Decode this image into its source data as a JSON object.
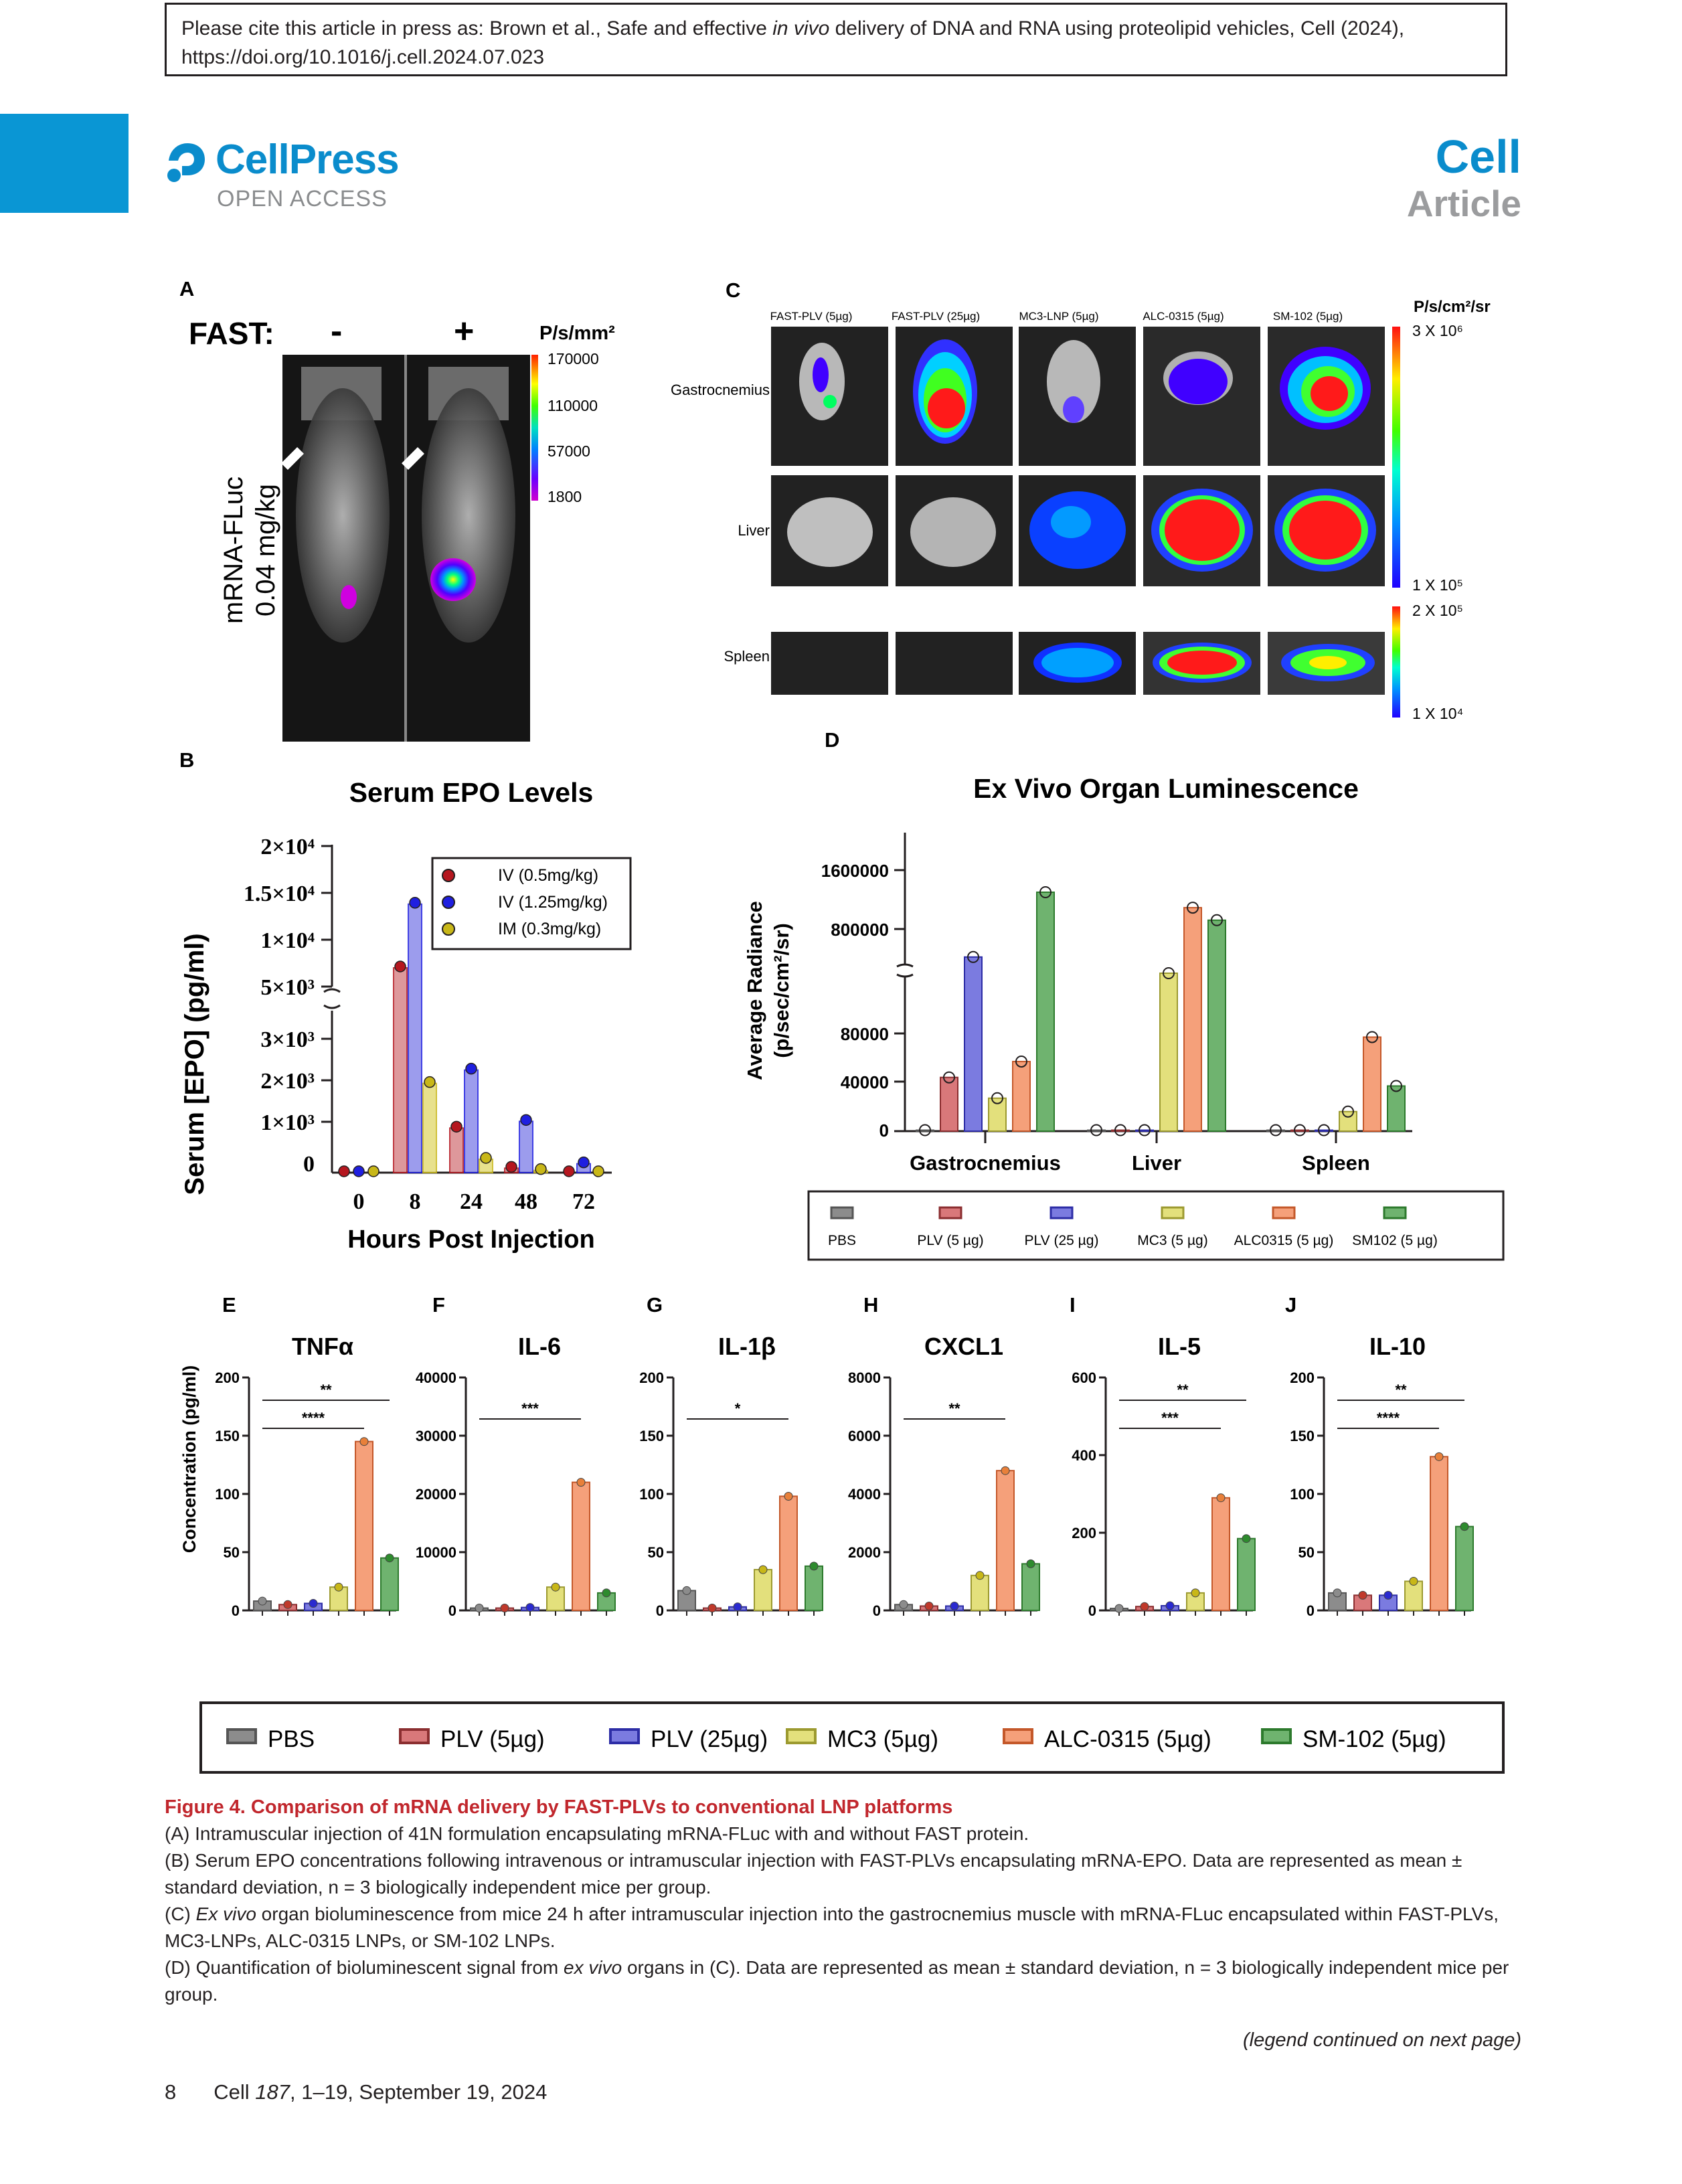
{
  "header": {
    "cite_prefix": "Please cite this article in press as: Brown et al., Safe and effective ",
    "cite_italic": "in vivo",
    "cite_suffix": " delivery of DNA and RNA using proteolipid vehicles, Cell (2024),",
    "cite_doi": "https://doi.org/10.1016/j.cell.2024.07.023",
    "publisher": "CellPress",
    "open_access": "OPEN ACCESS",
    "journal": "Cell",
    "article_type": "Article"
  },
  "panelA": {
    "letter": "A",
    "fast_label": "FAST:",
    "minus": "-",
    "plus": "+",
    "unit": "P/s/mm²",
    "scale": [
      "170000",
      "110000",
      "57000",
      "1800"
    ],
    "ylabel_line1": "mRNA-FLuc",
    "ylabel_line2": "0.04 mg/kg"
  },
  "panelC": {
    "letter": "C",
    "columns": [
      "FAST-PLV (5µg)",
      "FAST-PLV (25µg)",
      "MC3-LNP (5µg)",
      "ALC-0315 (5µg)",
      "SM-102 (5µg)"
    ],
    "rows": [
      "Gastrocnemius",
      "Liver",
      "Spleen"
    ],
    "unit": "P/s/cm²/sr",
    "scale1_top": "3 X 10⁶",
    "scale1_bottom": "1 X 10⁵",
    "scale2_top": "2 X 10⁵",
    "scale2_bottom": "1 X 10⁴"
  },
  "panelB": {
    "letter": "B",
    "title": "Serum EPO Levels",
    "ylabel": "Serum [EPO] (pg/ml)",
    "xlabel": "Hours Post Injection",
    "yticks_upper": [
      "2×10⁴",
      "1.5×10⁴",
      "1×10⁴",
      "5×10³"
    ],
    "yticks_lower": [
      "3×10³",
      "2×10³",
      "1×10³",
      "0"
    ],
    "xticks": [
      "0",
      "8",
      "24",
      "48",
      "72"
    ],
    "legend": [
      "IV (0.5mg/kg)",
      "IV (1.25mg/kg)",
      "IM (0.3mg/kg)"
    ],
    "colors": [
      "#b5171f",
      "#1f1fe0",
      "#c8b718"
    ]
  },
  "panelD": {
    "letter": "D",
    "title": "Ex Vivo Organ Luminescence",
    "ylabel_line1": "Average Radiance",
    "ylabel_line2": "(p/sec/cm²/sr)",
    "yticks_upper": [
      "1600000",
      "800000"
    ],
    "yticks_lower": [
      "80000",
      "40000",
      "0"
    ],
    "groups": [
      "Gastrocnemius",
      "Liver",
      "Spleen"
    ],
    "legend": [
      "PBS",
      "PLV (5 µg)",
      "PLV (25 µg)",
      "MC3 (5 µg)",
      "ALC0315 (5 µg)",
      "SM102 (5 µg)"
    ]
  },
  "cytokines": {
    "ylabel": "Concentration (pg/ml)",
    "panels": [
      {
        "letter": "E",
        "title": "TNFα",
        "ticks": [
          "200",
          "150",
          "100",
          "50",
          "0"
        ],
        "sig": [
          "**",
          "****"
        ]
      },
      {
        "letter": "F",
        "title": "IL-6",
        "ticks": [
          "40000",
          "30000",
          "20000",
          "10000",
          "0"
        ],
        "sig": [
          "***"
        ]
      },
      {
        "letter": "G",
        "title": "IL-1β",
        "ticks": [
          "200",
          "150",
          "100",
          "50",
          "0"
        ],
        "sig": [
          "*"
        ]
      },
      {
        "letter": "H",
        "title": "CXCL1",
        "ticks": [
          "8000",
          "6000",
          "4000",
          "2000",
          "0"
        ],
        "sig": [
          "**"
        ]
      },
      {
        "letter": "I",
        "title": "IL-5",
        "ticks": [
          "600",
          "400",
          "200",
          "0"
        ],
        "sig": [
          "**",
          "***"
        ]
      },
      {
        "letter": "J",
        "title": "IL-10",
        "ticks": [
          "200",
          "150",
          "100",
          "50",
          "0"
        ],
        "sig": [
          "**",
          "****"
        ]
      }
    ],
    "legend": [
      "PBS",
      "PLV (5µg)",
      "PLV (25µg)",
      "MC3 (5µg)",
      "ALC-0315 (5µg)",
      "SM-102 (5µg)"
    ]
  },
  "group_colors": [
    "#8c8c8c",
    "#d9787a",
    "#7b7be0",
    "#e3e07c",
    "#f5a07a",
    "#6fb36f"
  ],
  "chart_data": [
    {
      "type": "bar",
      "title": "Serum EPO Levels",
      "xlabel": "Hours Post Injection",
      "ylabel": "Serum [EPO] (pg/ml)",
      "categories": [
        "0",
        "8",
        "24",
        "48",
        "72"
      ],
      "series": [
        {
          "name": "IV (0.5mg/kg)",
          "values": [
            0,
            7000,
            1000,
            100,
            0
          ]
        },
        {
          "name": "IV (1.25mg/kg)",
          "values": [
            0,
            13800,
            2300,
            1150,
            200
          ]
        },
        {
          "name": "IM (0.3mg/kg)",
          "values": [
            0,
            2000,
            300,
            50,
            0
          ]
        }
      ],
      "legend_position": "top-right"
    },
    {
      "type": "bar",
      "title": "Ex Vivo Organ Luminescence",
      "ylabel": "Average Radiance (p/sec/cm²/sr)",
      "categories": [
        "Gastrocnemius",
        "Liver",
        "Spleen"
      ],
      "series": [
        {
          "name": "PBS",
          "values": [
            800,
            800,
            800
          ]
        },
        {
          "name": "PLV (5 µg)",
          "values": [
            44000,
            800,
            800
          ]
        },
        {
          "name": "PLV (25 µg)",
          "values": [
            420000,
            800,
            800
          ]
        },
        {
          "name": "MC3 (5 µg)",
          "values": [
            27000,
            200000,
            16000
          ]
        },
        {
          "name": "ALC0315 (5 µg)",
          "values": [
            57000,
            1090000,
            77000
          ]
        },
        {
          "name": "SM102 (5 µg)",
          "values": [
            1300000,
            920000,
            37000
          ]
        }
      ]
    },
    {
      "type": "bar",
      "title": "TNFα",
      "ylabel": "Concentration (pg/ml)",
      "categories": [
        "PBS",
        "PLV (5µg)",
        "PLV (25µg)",
        "MC3 (5µg)",
        "ALC-0315 (5µg)",
        "SM-102 (5µg)"
      ],
      "values": [
        8,
        5,
        6,
        20,
        145,
        45
      ],
      "ylim": [
        0,
        200
      ]
    },
    {
      "type": "bar",
      "title": "IL-6",
      "ylabel": "Concentration (pg/ml)",
      "categories": [
        "PBS",
        "PLV (5µg)",
        "PLV (25µg)",
        "MC3 (5µg)",
        "ALC-0315 (5µg)",
        "SM-102 (5µg)"
      ],
      "values": [
        400,
        400,
        500,
        4000,
        22000,
        3000
      ],
      "ylim": [
        0,
        40000
      ]
    },
    {
      "type": "bar",
      "title": "IL-1β",
      "ylabel": "Concentration (pg/ml)",
      "categories": [
        "PBS",
        "PLV (5µg)",
        "PLV (25µg)",
        "MC3 (5µg)",
        "ALC-0315 (5µg)",
        "SM-102 (5µg)"
      ],
      "values": [
        17,
        2,
        3,
        35,
        98,
        38
      ],
      "ylim": [
        0,
        200
      ]
    },
    {
      "type": "bar",
      "title": "CXCL1",
      "ylabel": "Concentration (pg/ml)",
      "categories": [
        "PBS",
        "PLV (5µg)",
        "PLV (25µg)",
        "MC3 (5µg)",
        "ALC-0315 (5µg)",
        "SM-102 (5µg)"
      ],
      "values": [
        200,
        150,
        150,
        1200,
        4800,
        1600
      ],
      "ylim": [
        0,
        8000
      ]
    },
    {
      "type": "bar",
      "title": "IL-5",
      "ylabel": "Concentration (pg/ml)",
      "categories": [
        "PBS",
        "PLV (5µg)",
        "PLV (25µg)",
        "MC3 (5µg)",
        "ALC-0315 (5µg)",
        "SM-102 (5µg)"
      ],
      "values": [
        5,
        10,
        12,
        45,
        290,
        185
      ],
      "ylim": [
        0,
        600
      ]
    },
    {
      "type": "bar",
      "title": "IL-10",
      "ylabel": "Concentration (pg/ml)",
      "categories": [
        "PBS",
        "PLV (5µg)",
        "PLV (25µg)",
        "MC3 (5µg)",
        "ALC-0315 (5µg)",
        "SM-102 (5µg)"
      ],
      "values": [
        15,
        13,
        13,
        25,
        132,
        72
      ],
      "ylim": [
        0,
        200
      ]
    }
  ],
  "caption": {
    "title": "Figure 4.  Comparison of mRNA delivery by FAST-PLVs to conventional LNP platforms",
    "A": "(A) Intramuscular injection of 41N formulation encapsulating mRNA-FLuc with and without FAST protein.",
    "B": "(B) Serum EPO concentrations following intravenous or intramuscular injection with FAST-PLVs encapsulating mRNA-EPO. Data are represented as mean ± standard deviation, n = 3 biologically independent mice per group.",
    "C_pre": "(C) ",
    "C_italic": "Ex vivo",
    "C_post": " organ bioluminescence from mice 24 h after intramuscular injection into the gastrocnemius muscle with mRNA-FLuc encapsulated within FAST-PLVs, MC3-LNPs, ALC-0315 LNPs, or SM-102 LNPs.",
    "D_pre": "(D) Quantification of bioluminescent signal from ",
    "D_italic": "ex vivo",
    "D_post": " organs in (C). Data are represented as mean ± standard deviation, n = 3 biologically independent mice per group.",
    "continued": "(legend continued on next page)"
  },
  "footer": {
    "page": "8",
    "journal_text": "Cell ",
    "volume": "187",
    "rest": ", 1–19, September 19, 2024"
  }
}
